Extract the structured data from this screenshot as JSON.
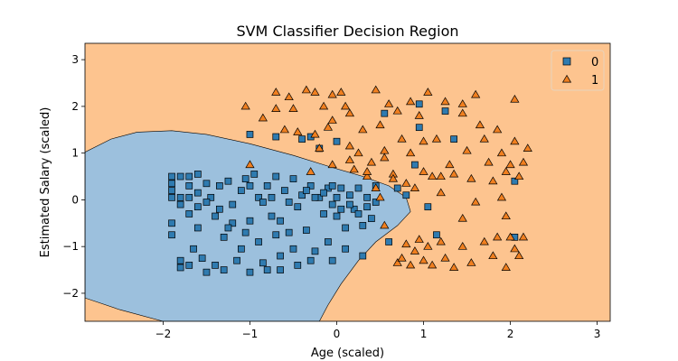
{
  "chart_data": {
    "type": "scatter",
    "title": "SVM Classifier Decision Region",
    "xlabel": "Age (scaled)",
    "ylabel": "Estimated Salary (scaled)",
    "xlim": [
      -2.9,
      3.15
    ],
    "ylim": [
      -2.6,
      3.35
    ],
    "xticks": [
      -2,
      -1,
      0,
      1,
      2,
      3
    ],
    "yticks": [
      -2,
      -1,
      0,
      1,
      2,
      3
    ],
    "grid": false,
    "legend_position": "top-right",
    "region_colors": {
      "0": "#9cc0dd",
      "1": "#fdc48f"
    },
    "series": [
      {
        "name": "0",
        "marker": "square",
        "color": "#2f7bb0",
        "points": [
          [
            -1.9,
            0.5
          ],
          [
            -1.9,
            0.35
          ],
          [
            -1.9,
            0.2
          ],
          [
            -1.9,
            -0.5
          ],
          [
            -1.9,
            -0.75
          ],
          [
            -1.8,
            -1.3
          ],
          [
            -1.8,
            -1.45
          ],
          [
            -1.8,
            0.5
          ],
          [
            -1.8,
            0.05
          ],
          [
            -1.7,
            0.5
          ],
          [
            -1.7,
            0.3
          ],
          [
            -1.7,
            0.05
          ],
          [
            -1.7,
            -0.3
          ],
          [
            -1.7,
            -1.4
          ],
          [
            -1.65,
            -1.05
          ],
          [
            -1.6,
            0.55
          ],
          [
            -1.6,
            0.15
          ],
          [
            -1.6,
            -0.6
          ],
          [
            -1.55,
            -1.25
          ],
          [
            -1.5,
            -1.55
          ],
          [
            -1.5,
            0.35
          ],
          [
            -1.45,
            0.05
          ],
          [
            -1.4,
            -0.35
          ],
          [
            -1.4,
            -1.4
          ],
          [
            -1.35,
            0.3
          ],
          [
            -1.3,
            -0.8
          ],
          [
            -1.3,
            -1.5
          ],
          [
            -1.25,
            0.4
          ],
          [
            -1.2,
            -0.1
          ],
          [
            -1.2,
            -0.5
          ],
          [
            -1.15,
            -1.3
          ],
          [
            -1.1,
            0.2
          ],
          [
            -1.1,
            -1.05
          ],
          [
            -1.05,
            0.45
          ],
          [
            -1.0,
            0.3
          ],
          [
            -1.0,
            -0.45
          ],
          [
            -1.0,
            -1.55
          ],
          [
            -0.95,
            0.55
          ],
          [
            -0.9,
            0.05
          ],
          [
            -0.9,
            -0.9
          ],
          [
            -0.85,
            -1.35
          ],
          [
            -0.8,
            0.3
          ],
          [
            -0.75,
            -0.35
          ],
          [
            -0.7,
            0.5
          ],
          [
            -0.7,
            -0.75
          ],
          [
            -0.65,
            -1.2
          ],
          [
            -0.6,
            0.2
          ],
          [
            -0.55,
            -0.05
          ],
          [
            -0.5,
            0.45
          ],
          [
            -0.5,
            -1.05
          ],
          [
            -0.45,
            -1.4
          ],
          [
            -0.4,
            0.1
          ],
          [
            -0.35,
            -0.65
          ],
          [
            -0.3,
            0.3
          ],
          [
            -0.25,
            -1.1
          ],
          [
            -0.2,
            0.05
          ],
          [
            -0.15,
            -0.3
          ],
          [
            -0.1,
            0.25
          ],
          [
            -0.1,
            -0.9
          ],
          [
            -0.05,
            -0.1
          ],
          [
            -0.05,
            -1.3
          ],
          [
            0.0,
            0.05
          ],
          [
            0.0,
            -0.35
          ],
          [
            0.05,
            0.25
          ],
          [
            0.1,
            -0.6
          ],
          [
            0.1,
            -1.05
          ],
          [
            0.15,
            0.1
          ],
          [
            0.2,
            -0.2
          ],
          [
            0.25,
            0.25
          ],
          [
            0.3,
            -0.55
          ],
          [
            0.35,
            0.05
          ],
          [
            0.4,
            -0.4
          ],
          [
            0.45,
            0.3
          ],
          [
            -1.9,
            0.05
          ],
          [
            -1.8,
            -0.1
          ],
          [
            -1.6,
            -0.15
          ],
          [
            -1.5,
            -0.05
          ],
          [
            -1.35,
            -0.2
          ],
          [
            -1.25,
            -0.6
          ],
          [
            -1.05,
            -0.7
          ],
          [
            -0.85,
            -0.05
          ],
          [
            -0.75,
            0.05
          ],
          [
            -0.65,
            -0.45
          ],
          [
            -0.55,
            -0.7
          ],
          [
            -0.45,
            -0.15
          ],
          [
            -0.35,
            0.2
          ],
          [
            -0.25,
            0.05
          ],
          [
            -0.15,
            0.15
          ],
          [
            -0.05,
            0.3
          ],
          [
            0.05,
            -0.2
          ],
          [
            0.15,
            -0.1
          ],
          [
            0.25,
            -0.3
          ],
          [
            0.35,
            -0.15
          ],
          [
            0.45,
            -0.05
          ],
          [
            -1.0,
            1.4
          ],
          [
            -0.7,
            1.35
          ],
          [
            -0.4,
            1.3
          ],
          [
            -0.3,
            1.35
          ],
          [
            -0.2,
            1.1
          ],
          [
            0.0,
            1.25
          ],
          [
            0.55,
            1.85
          ],
          [
            0.95,
            2.05
          ],
          [
            1.25,
            1.9
          ],
          [
            1.35,
            1.3
          ],
          [
            0.95,
            1.55
          ],
          [
            0.9,
            0.75
          ],
          [
            0.7,
            0.25
          ],
          [
            0.8,
            0.1
          ],
          [
            1.05,
            -0.15
          ],
          [
            0.6,
            -0.9
          ],
          [
            1.15,
            -0.75
          ],
          [
            2.05,
            0.4
          ],
          [
            2.05,
            -0.8
          ],
          [
            -0.8,
            -1.5
          ],
          [
            -0.65,
            -1.5
          ],
          [
            -0.3,
            -1.3
          ],
          [
            0.3,
            -1.2
          ]
        ]
      },
      {
        "name": "1",
        "marker": "triangle",
        "color": "#f07f1f",
        "points": [
          [
            -1.0,
            0.75
          ],
          [
            -1.05,
            2.0
          ],
          [
            -0.85,
            1.75
          ],
          [
            -0.7,
            2.3
          ],
          [
            -0.7,
            1.95
          ],
          [
            -0.6,
            1.5
          ],
          [
            -0.55,
            2.2
          ],
          [
            -0.5,
            1.95
          ],
          [
            -0.45,
            1.45
          ],
          [
            -0.35,
            2.35
          ],
          [
            -0.25,
            2.3
          ],
          [
            -0.25,
            1.4
          ],
          [
            -0.15,
            2.0
          ],
          [
            -0.1,
            1.55
          ],
          [
            -0.05,
            1.7
          ],
          [
            -0.05,
            2.25
          ],
          [
            0.05,
            2.3
          ],
          [
            0.1,
            2.0
          ],
          [
            0.15,
            1.85
          ],
          [
            0.15,
            1.15
          ],
          [
            0.2,
            0.65
          ],
          [
            0.25,
            1.0
          ],
          [
            0.3,
            1.5
          ],
          [
            0.35,
            0.5
          ],
          [
            0.4,
            0.8
          ],
          [
            0.45,
            2.35
          ],
          [
            0.5,
            1.6
          ],
          [
            0.55,
            1.05
          ],
          [
            0.6,
            2.05
          ],
          [
            0.65,
            0.55
          ],
          [
            0.7,
            1.9
          ],
          [
            0.75,
            1.3
          ],
          [
            0.8,
            0.35
          ],
          [
            0.85,
            1.0
          ],
          [
            0.9,
            0.25
          ],
          [
            0.95,
            1.8
          ],
          [
            1.0,
            0.6
          ],
          [
            1.05,
            2.3
          ],
          [
            1.1,
            0.5
          ],
          [
            1.15,
            1.3
          ],
          [
            1.2,
            0.15
          ],
          [
            1.25,
            2.1
          ],
          [
            1.3,
            0.75
          ],
          [
            1.35,
            0.55
          ],
          [
            1.45,
            1.85
          ],
          [
            1.5,
            1.05
          ],
          [
            1.55,
            0.45
          ],
          [
            1.6,
            -0.05
          ],
          [
            1.65,
            1.6
          ],
          [
            1.7,
            1.3
          ],
          [
            1.75,
            0.8
          ],
          [
            1.8,
            0.4
          ],
          [
            1.85,
            1.5
          ],
          [
            1.9,
            1.0
          ],
          [
            1.95,
            -0.35
          ],
          [
            2.0,
            0.75
          ],
          [
            2.05,
            1.25
          ],
          [
            2.1,
            0.5
          ],
          [
            2.15,
            0.8
          ],
          [
            0.7,
            -1.35
          ],
          [
            0.75,
            -1.25
          ],
          [
            0.8,
            -0.95
          ],
          [
            0.85,
            -1.4
          ],
          [
            0.9,
            -1.1
          ],
          [
            0.95,
            -0.85
          ],
          [
            1.0,
            -1.3
          ],
          [
            1.05,
            -1.0
          ],
          [
            1.1,
            -1.4
          ],
          [
            1.2,
            -0.9
          ],
          [
            1.25,
            -1.25
          ],
          [
            1.35,
            -1.45
          ],
          [
            1.45,
            -1.0
          ],
          [
            1.55,
            -1.35
          ],
          [
            1.7,
            -0.9
          ],
          [
            1.8,
            -1.2
          ],
          [
            1.85,
            -0.8
          ],
          [
            1.95,
            -1.45
          ],
          [
            2.05,
            -1.05
          ],
          [
            2.1,
            -1.2
          ],
          [
            2.15,
            -0.8
          ],
          [
            -0.3,
            0.6
          ],
          [
            -0.05,
            0.75
          ],
          [
            0.15,
            0.85
          ],
          [
            0.35,
            0.6
          ],
          [
            0.55,
            0.9
          ],
          [
            0.65,
            0.45
          ],
          [
            1.0,
            1.25
          ],
          [
            1.6,
            2.25
          ],
          [
            1.95,
            0.6
          ],
          [
            2.05,
            2.15
          ],
          [
            2.2,
            1.1
          ],
          [
            1.45,
            2.05
          ],
          [
            0.85,
            2.1
          ],
          [
            1.9,
            0.05
          ],
          [
            1.2,
            0.5
          ],
          [
            2.0,
            -0.8
          ],
          [
            0.55,
            -0.55
          ],
          [
            1.45,
            -0.4
          ],
          [
            0.45,
            0.25
          ],
          [
            -0.2,
            1.1
          ],
          [
            0.5,
            0.05
          ]
        ]
      }
    ],
    "legend": [
      {
        "label": "0",
        "marker": "square"
      },
      {
        "label": "1",
        "marker": "triangle"
      }
    ]
  }
}
